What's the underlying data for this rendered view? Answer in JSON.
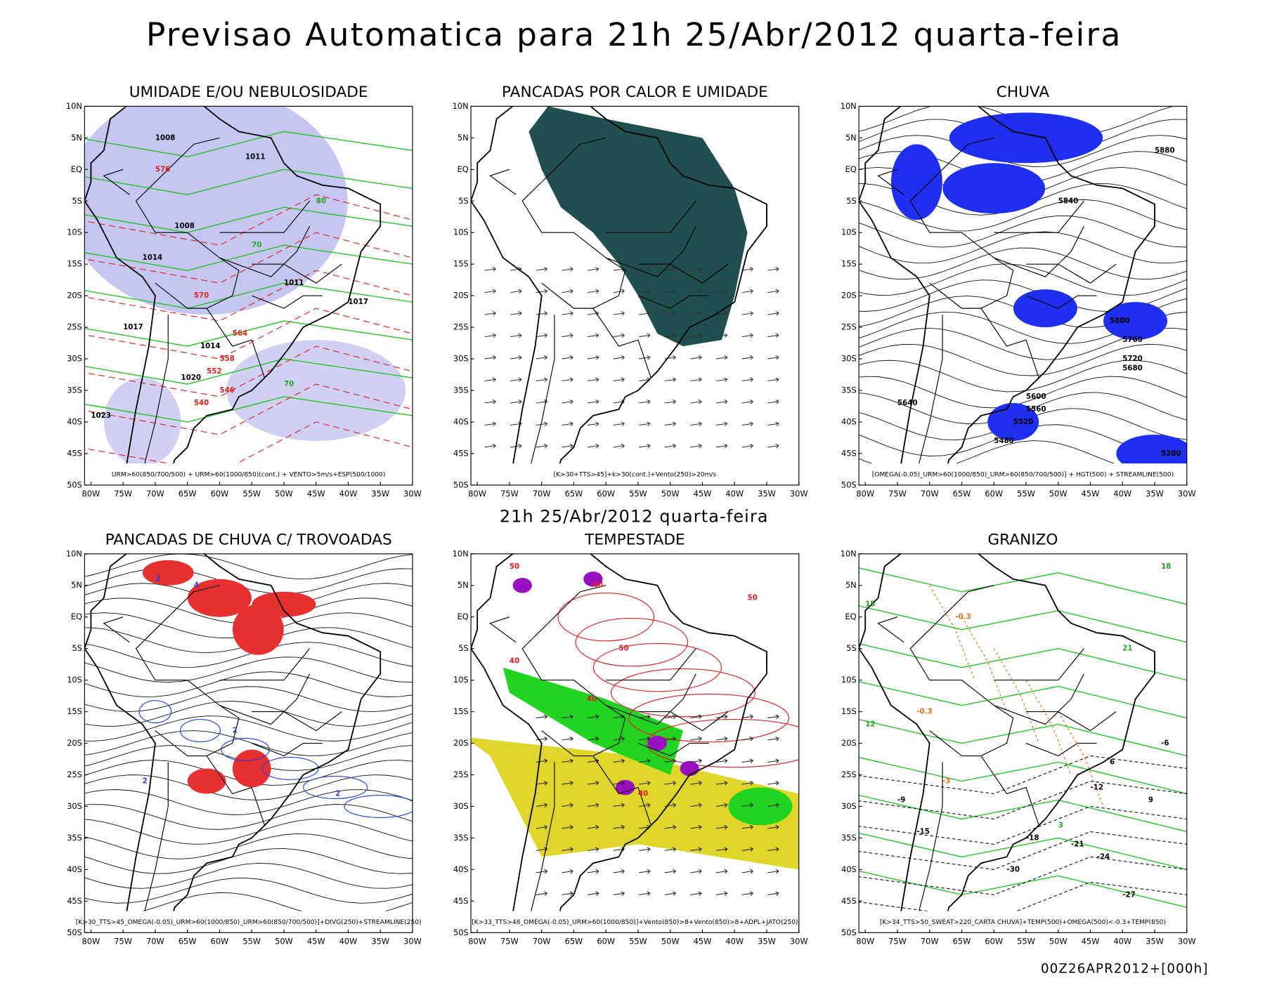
{
  "title": "Previsao Automatica para 21h 25/Abr/2012 quarta-feira",
  "subtitle": "21h 25/Abr/2012 quarta-feira",
  "footer": "00Z26APR2012+[000h]",
  "lat_ticks": [
    "10N",
    "5N",
    "EQ",
    "5S",
    "10S",
    "15S",
    "20S",
    "25S",
    "30S",
    "35S",
    "40S",
    "45S",
    "50S"
  ],
  "lon_ticks": [
    "80W",
    "75W",
    "70W",
    "65W",
    "60W",
    "55W",
    "50W",
    "45W",
    "40W",
    "35W",
    "30W"
  ],
  "panels": [
    {
      "title": "UMIDADE E/OU NEBULOSIDADE",
      "caption": "URM>60(850/700/500) + URM>60(1000/850)(cont.) + VENTO>5m/s+ESP(500/1000)",
      "labels": [
        "1008",
        "1011",
        "1008",
        "1014",
        "1011",
        "1017",
        "1014",
        "1017",
        "1020",
        "1023",
        "576",
        "570",
        "564",
        "558",
        "552",
        "546",
        "540",
        "80",
        "70",
        "70"
      ]
    },
    {
      "title": "PANCADAS POR CALOR E UMIDADE",
      "caption": "[K>30+TTS>45]+k>30(cont.)+Vento(250)>20m/s",
      "labels": []
    },
    {
      "title": "CHUVA",
      "caption": "[OMEGA(-0.05)_URM>60(1000/850)_URM>60(850/700/500)] + HGT(500) + STREAMLINE(500)",
      "labels": [
        "5880",
        "5840",
        "5800",
        "5760",
        "5720",
        "5680",
        "5640",
        "5600",
        "5560",
        "5520",
        "5480",
        "5200"
      ]
    },
    {
      "title": "PANCADAS DE CHUVA C/ TROVOADAS",
      "caption": "[K>30_TTS>45_OMEGA(-0.05)_URM>60(1000/850)_URM>60(850/700/500)]+DIVG(250)+STREAMLINE(250)",
      "labels": [
        "2",
        "4",
        "2",
        "2",
        "2"
      ]
    },
    {
      "title": "TEMPESTADE",
      "caption": "[K>33_TTS>48_OMEGA(-0.05)_URM>60(1000/850)]+Vento(850)>8+Vento(850)>8+ADPL+JATO(250)",
      "labels": [
        "50",
        "40",
        "50",
        "40",
        "40",
        "50",
        "40"
      ]
    },
    {
      "title": "GRANIZO",
      "caption": "[K>34_TTS>50_SWEAT>220_CARTA CHUVA]+TEMP(500)+OMEGA(500)<-0.3+TEMP(850)",
      "labels": [
        "18",
        "15",
        "12",
        "9",
        "6",
        "3",
        "-3",
        "-6",
        "-9",
        "-12",
        "-15",
        "-18",
        "-21",
        "-24",
        "-27",
        "-30",
        "-0.3",
        "-0.3",
        "21"
      ]
    }
  ]
}
